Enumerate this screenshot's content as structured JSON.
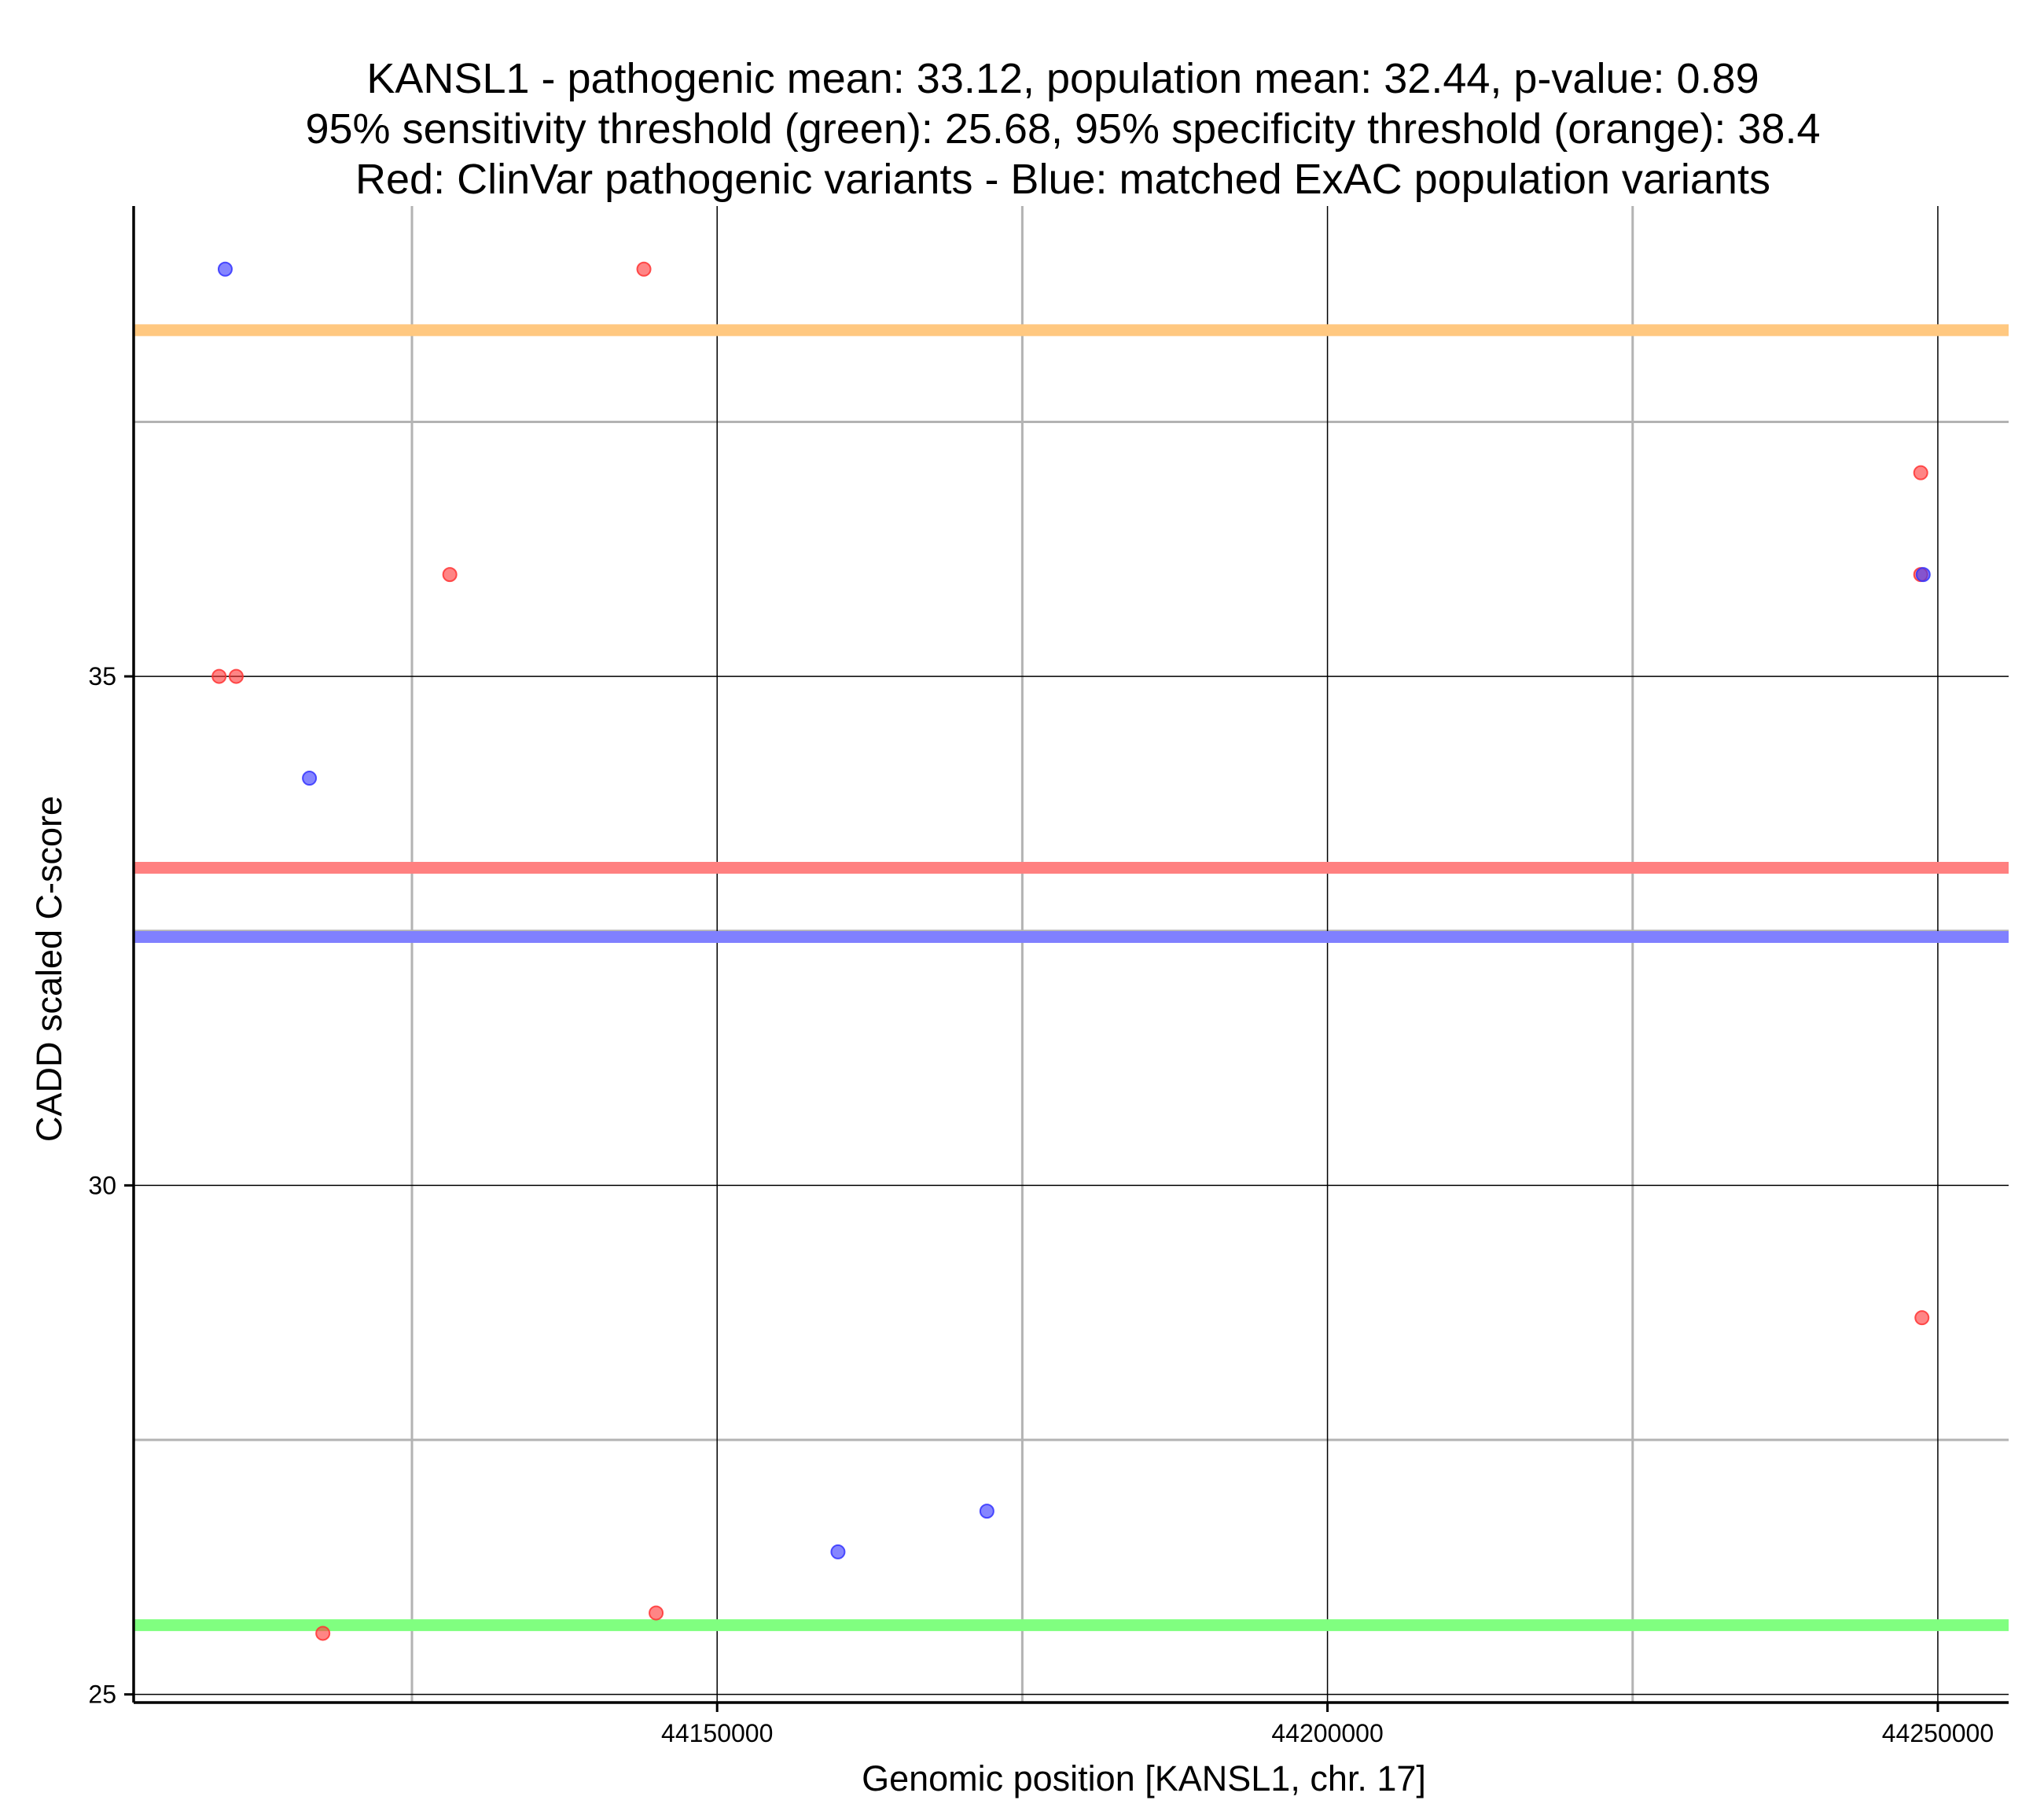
{
  "chart_data": {
    "type": "scatter",
    "title": [
      "KANSL1 - pathogenic mean: 33.12, population mean: 32.44, p-value: 0.89",
      "95% sensitivity threshold (green): 25.68, 95% specificity threshold (orange): 38.4",
      "Red: ClinVar pathogenic variants - Blue: matched ExAC population variants"
    ],
    "xlabel": "Genomic position [KANSL1, chr. 17]",
    "ylabel": "CADD scaled C-score",
    "xlim": [
      44102200,
      44255800
    ],
    "ylim": [
      24.92,
      39.62
    ],
    "xticks": [
      44150000,
      44200000,
      44250000
    ],
    "xtick_labels": [
      "44150000",
      "44200000",
      "44250000"
    ],
    "x_minor_gridlines": [
      44125000,
      44175000,
      44225000
    ],
    "yticks": [
      25,
      30,
      35
    ],
    "ytick_labels": [
      "25",
      "30",
      "35"
    ],
    "y_minor_gridlines": [
      27.5,
      32.5,
      37.5
    ],
    "grid": true,
    "colors": {
      "pathogenic": "#ff3333",
      "population": "#3333ff",
      "sensitivity_threshold": "#80ff80",
      "specificity_threshold": "#ffc880",
      "pathogenic_mean": "#ff8080",
      "population_mean": "#8080ff"
    },
    "hlines": [
      {
        "name": "95% specificity threshold",
        "y": 38.4,
        "color": "#ffc880"
      },
      {
        "name": "pathogenic mean",
        "y": 33.12,
        "color": "#ff8080"
      },
      {
        "name": "population mean",
        "y": 32.44,
        "color": "#8080ff"
      },
      {
        "name": "95% sensitivity threshold",
        "y": 25.68,
        "color": "#80ff80"
      }
    ],
    "series": [
      {
        "name": "ClinVar pathogenic variants",
        "color": "#ff3333",
        "points": [
          {
            "x": 44109200,
            "y": 35.0
          },
          {
            "x": 44110600,
            "y": 35.0
          },
          {
            "x": 44117700,
            "y": 25.6
          },
          {
            "x": 44128100,
            "y": 36.0
          },
          {
            "x": 44144000,
            "y": 39.0
          },
          {
            "x": 44145000,
            "y": 25.8
          },
          {
            "x": 44248600,
            "y": 37.0
          },
          {
            "x": 44248600,
            "y": 36.0
          },
          {
            "x": 44248700,
            "y": 28.7
          }
        ]
      },
      {
        "name": "matched ExAC population variants",
        "color": "#3333ff",
        "points": [
          {
            "x": 44109700,
            "y": 39.0
          },
          {
            "x": 44116600,
            "y": 34.0
          },
          {
            "x": 44159900,
            "y": 26.4
          },
          {
            "x": 44172100,
            "y": 26.8
          },
          {
            "x": 44248800,
            "y": 36.0
          }
        ]
      }
    ]
  }
}
